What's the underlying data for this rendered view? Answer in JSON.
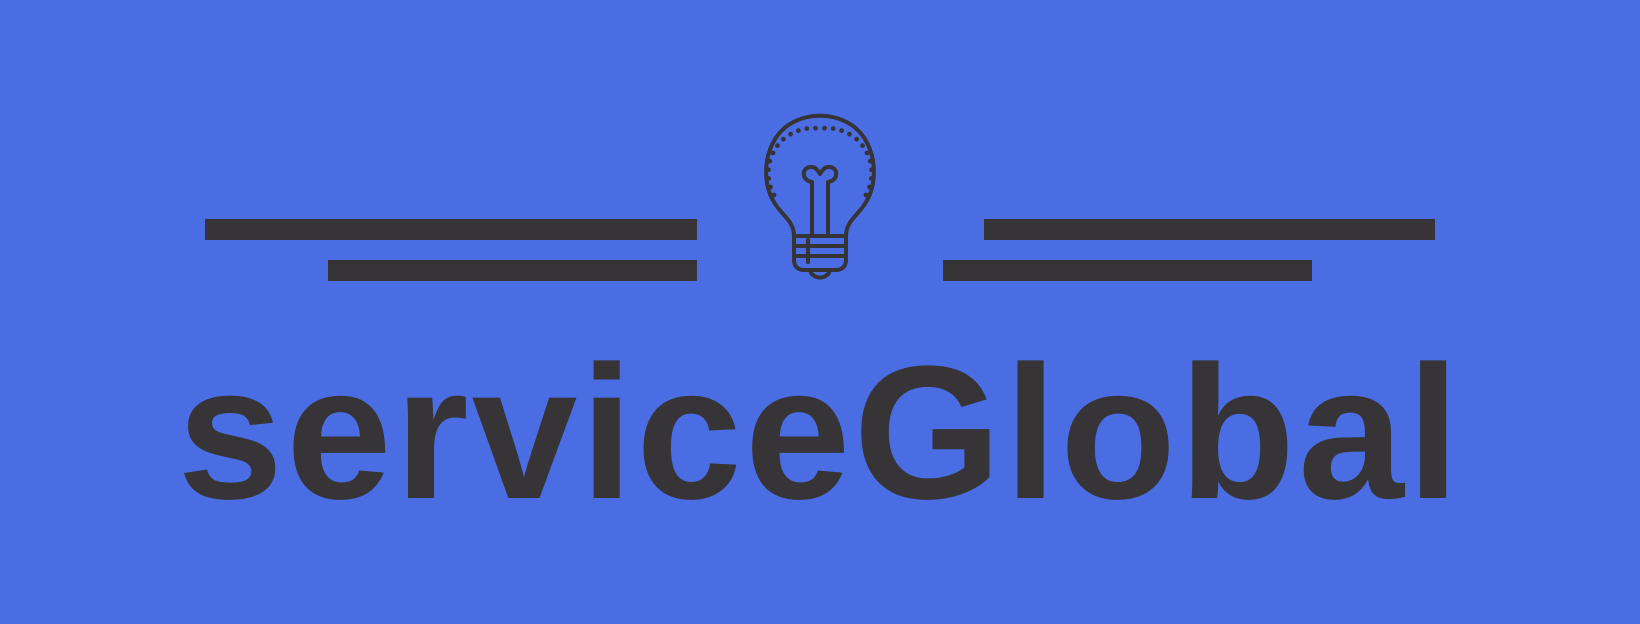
{
  "logo": {
    "wordmark": "serviceGlobal",
    "icon": "lightbulb-icon"
  },
  "colors": {
    "background": "#4a6de3",
    "ink": "#363436"
  }
}
